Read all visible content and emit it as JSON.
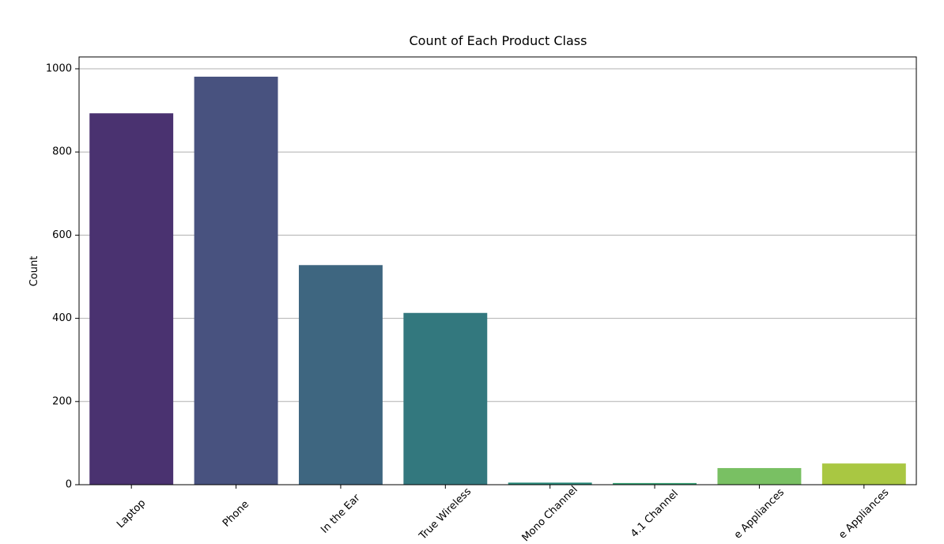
{
  "chart_data": {
    "type": "bar",
    "title": "Count of Each Product Class",
    "ylabel": "Count",
    "categories": [
      "Laptop",
      "Phone",
      "In the Ear",
      "True Wireless",
      "Mono Channel",
      "4.1 Channel",
      "e Appliances",
      "e Appliances"
    ],
    "values": [
      893,
      981,
      528,
      413,
      5,
      4,
      40,
      51
    ],
    "colors": [
      "#4a3270",
      "#48527f",
      "#3e6680",
      "#33787e",
      "#2a8a7a",
      "#35a073",
      "#79c063",
      "#a9c742"
    ],
    "ylim": [
      0,
      1028.5
    ],
    "yticks": [
      0,
      200,
      400,
      600,
      800,
      1000
    ],
    "grid": true
  }
}
